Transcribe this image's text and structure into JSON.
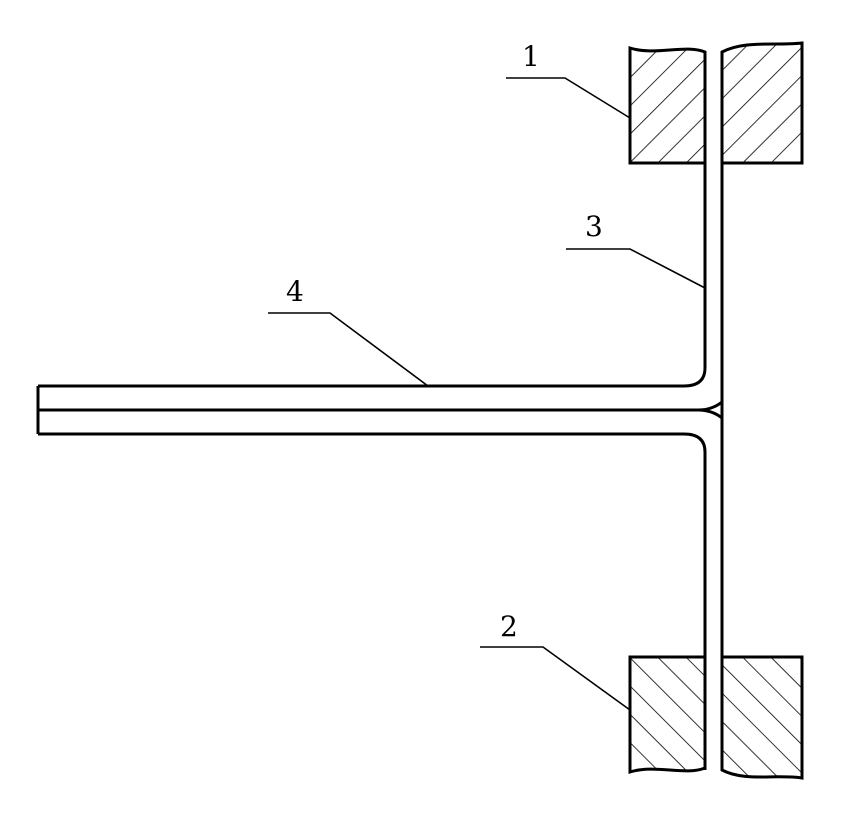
{
  "labels": {
    "one": "1",
    "two": "2",
    "three": "3",
    "four": "4"
  },
  "colors": {
    "stroke": "#000000",
    "background": "#ffffff"
  }
}
